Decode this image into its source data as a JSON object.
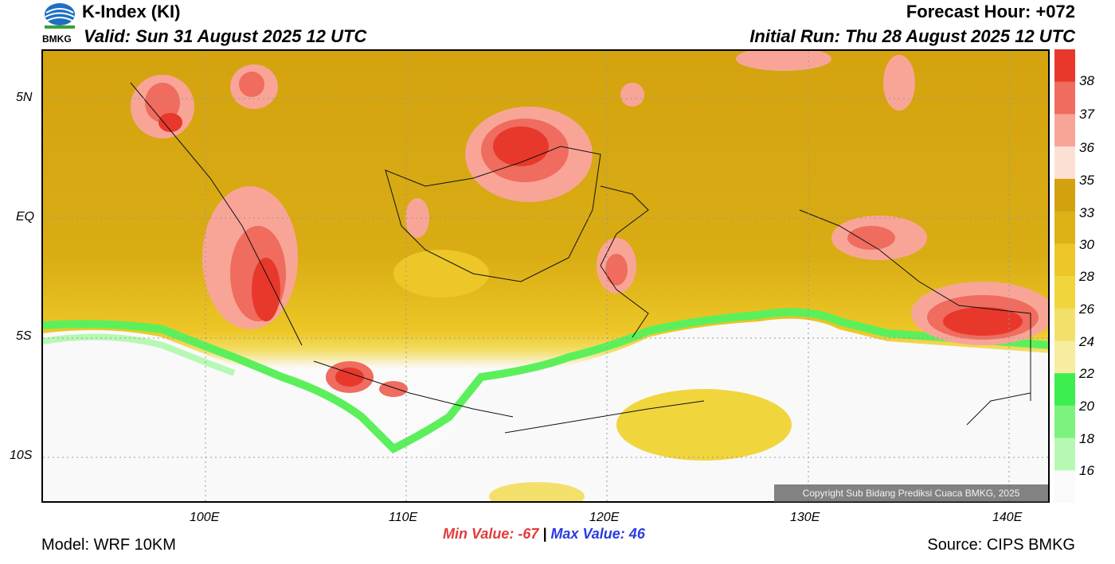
{
  "header": {
    "title": "K-Index (KI)",
    "valid": "Valid: Sun 31 August 2025 12 UTC",
    "forecast_hour": "Forecast Hour: +072",
    "initial_run": "Initial Run: Thu 28 August 2025 12 UTC",
    "logo_text": "BMKG"
  },
  "axes": {
    "y_labels": [
      "5N",
      "EQ",
      "5S",
      "10S"
    ],
    "x_labels": [
      "100E",
      "110E",
      "120E",
      "130E",
      "140E"
    ]
  },
  "colorbar": {
    "labels": [
      "38",
      "37",
      "36",
      "35",
      "33",
      "30",
      "28",
      "26",
      "24",
      "22",
      "20",
      "18",
      "16"
    ],
    "colors": [
      "#e8382b",
      "#ef6c5e",
      "#f8a598",
      "#fde0d4",
      "#d3a10e",
      "#dcb217",
      "#ecc727",
      "#f0d53d",
      "#f3e06a",
      "#f7eca0",
      "#3cef4f",
      "#7cf37c",
      "#b7f8b3",
      "#fafafa"
    ]
  },
  "map": {
    "copyright": "Copyright Sub Bidang Prediksi Cuaca BMKG, 2025"
  },
  "footer": {
    "min_label": "Min Value: -67",
    "separator": "|",
    "max_label": "Max Value:  46",
    "model": "Model: WRF 10KM",
    "source": "Source: CIPS BMKG"
  }
}
